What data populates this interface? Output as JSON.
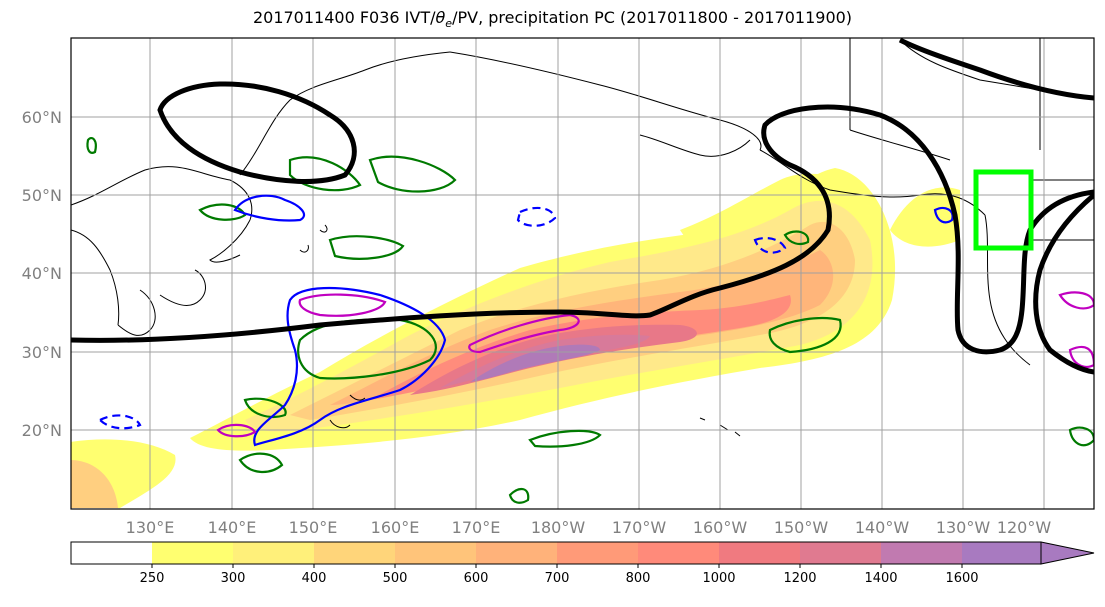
{
  "title": "2017011400 F036 IVT/θe/PV, precipitation PC (2017011800 - 2017011900)",
  "title_parts": {
    "prefix": "2017011400 F036 IVT/",
    "theta": "θ",
    "theta_sub": "e",
    "suffix": "/PV, precipitation PC (2017011800 - 2017011900)"
  },
  "lat_labels": [
    "60°N",
    "50°N",
    "40°N",
    "30°N",
    "20°N"
  ],
  "lon_labels": [
    "130°E",
    "140°E",
    "150°E",
    "160°E",
    "170°E",
    "180°W",
    "170°W",
    "160°W",
    "150°W",
    "140°W",
    "130°W",
    "120°W"
  ],
  "colorbar": {
    "ticks": [
      "250",
      "300",
      "400",
      "500",
      "600",
      "700",
      "800",
      "1000",
      "1200",
      "1400",
      "1600"
    ],
    "colors": [
      "#ffff70",
      "#fff07a",
      "#ffd57a",
      "#ffc47a",
      "#ffb27a",
      "#ff9a78",
      "#ff8a7a",
      "#f07a80",
      "#e07a90",
      "#c17ab0",
      "#a87ac0"
    ]
  },
  "colors": {
    "theta_contour": "#000000",
    "pv_green": "#007a00",
    "pv_blue": "#0000ff",
    "pv_magenta": "#c000c0",
    "box": "#00ff00",
    "grid": "#a0a0a0"
  }
}
